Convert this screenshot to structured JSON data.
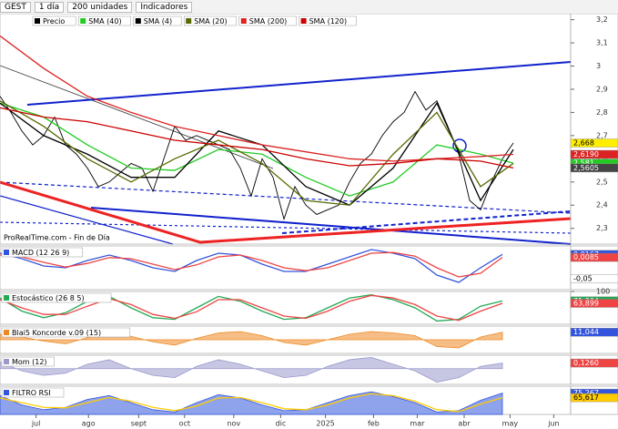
{
  "toolbar": {
    "symbol": "GEST",
    "period": "1 día",
    "units": "200 unidades",
    "indicators": "Indicadores"
  },
  "watermark": "ProRealTime.com - Fin de Día",
  "x_axis": {
    "xlim": [
      0,
      52.25
    ],
    "xticks": [
      {
        "value": 3.3,
        "label": "jul"
      },
      {
        "value": 8.1,
        "label": "ago"
      },
      {
        "value": 12.7,
        "label": "sept"
      },
      {
        "value": 16.9,
        "label": "oct"
      },
      {
        "value": 21.4,
        "label": "nov"
      },
      {
        "value": 25.7,
        "label": "dic"
      },
      {
        "value": 29.8,
        "label": "2025"
      },
      {
        "value": 34.2,
        "label": "feb"
      },
      {
        "value": 38.2,
        "label": "mar"
      },
      {
        "value": 42.5,
        "label": "abr"
      },
      {
        "value": 46.7,
        "label": "may"
      },
      {
        "value": 50.7,
        "label": "jun"
      }
    ]
  },
  "chart_data": [
    {
      "type": "line",
      "ylim": [
        2.232,
        3.226
      ],
      "yticks": [
        {
          "value": 2.3,
          "label": "2,3"
        },
        {
          "value": 2.4,
          "label": "2,4"
        },
        {
          "value": 2.5,
          "label": "2,5"
        },
        {
          "value": 2.6,
          "label": "2,6"
        },
        {
          "value": 2.7,
          "label": "2,7"
        },
        {
          "value": 2.8,
          "label": "2,8"
        },
        {
          "value": 2.9,
          "label": "2,9"
        },
        {
          "value": 3.0,
          "label": "3"
        },
        {
          "value": 3.1,
          "label": "3,1"
        },
        {
          "value": 3.2,
          "label": "3,2"
        }
      ],
      "series": [
        {
          "name": "Precio",
          "color": "#000000",
          "x": [
            0,
            1,
            2,
            3,
            4,
            5,
            6,
            7,
            8,
            9,
            10,
            11,
            12,
            13,
            14,
            15,
            16,
            17,
            18,
            19,
            20,
            21,
            22,
            23,
            24,
            25,
            26,
            27,
            28,
            29,
            30,
            31,
            32,
            33,
            34,
            35,
            36,
            37,
            38,
            39,
            40,
            41,
            42,
            43,
            44,
            45,
            46,
            47
          ],
          "values": [
            2.87,
            2.8,
            2.72,
            2.66,
            2.7,
            2.78,
            2.66,
            2.62,
            2.56,
            2.48,
            2.5,
            2.54,
            2.58,
            2.56,
            2.46,
            2.6,
            2.74,
            2.68,
            2.7,
            2.68,
            2.66,
            2.64,
            2.56,
            2.44,
            2.6,
            2.52,
            2.34,
            2.48,
            2.4,
            2.36,
            2.38,
            2.4,
            2.5,
            2.58,
            2.62,
            2.7,
            2.76,
            2.8,
            2.89,
            2.81,
            2.85,
            2.74,
            2.62,
            2.42,
            2.38,
            2.5,
            2.6,
            2.668
          ]
        },
        {
          "name": "SMA (40)",
          "color": "#22cc22",
          "x": [
            0,
            4,
            8,
            12,
            16,
            20,
            24,
            28,
            32,
            36,
            40,
            44,
            47
          ],
          "values": [
            2.84,
            2.78,
            2.66,
            2.56,
            2.55,
            2.64,
            2.62,
            2.52,
            2.44,
            2.5,
            2.66,
            2.62,
            2.581
          ]
        },
        {
          "name": "SMA (4)",
          "color": "#000000",
          "x": [
            0,
            4,
            8,
            12,
            16,
            20,
            24,
            28,
            32,
            36,
            40,
            44,
            47
          ],
          "values": [
            2.84,
            2.7,
            2.62,
            2.52,
            2.52,
            2.72,
            2.66,
            2.48,
            2.4,
            2.56,
            2.84,
            2.42,
            2.64
          ]
        },
        {
          "name": "SMA (20)",
          "color": "#556b00",
          "x": [
            0,
            4,
            8,
            12,
            16,
            20,
            24,
            28,
            32,
            36,
            40,
            44,
            47
          ],
          "values": [
            2.85,
            2.74,
            2.6,
            2.5,
            2.6,
            2.68,
            2.58,
            2.42,
            2.4,
            2.62,
            2.8,
            2.48,
            2.58
          ]
        },
        {
          "name": "SMA (200)",
          "color": "#dd2222",
          "x": [
            0,
            4,
            8,
            12,
            16,
            20,
            24,
            28,
            32,
            36,
            40,
            44,
            47
          ],
          "values": [
            3.13,
            2.99,
            2.87,
            2.8,
            2.74,
            2.7,
            2.66,
            2.63,
            2.6,
            2.59,
            2.6,
            2.61,
            2.619
          ]
        },
        {
          "name": "SMA (120)",
          "color": "#cc0000",
          "x": [
            0,
            4,
            8,
            12,
            16,
            20,
            24,
            28,
            32,
            36,
            40,
            44,
            47
          ],
          "values": [
            2.82,
            2.78,
            2.76,
            2.72,
            2.68,
            2.66,
            2.64,
            2.6,
            2.57,
            2.58,
            2.6,
            2.59,
            2.5605
          ]
        }
      ],
      "markers": [
        {
          "value": 2.668,
          "label": "2,668",
          "color": "#ffee00"
        },
        {
          "value": 2.619,
          "label": "2,6190",
          "color": "#dd2222"
        },
        {
          "value": 2.581,
          "label": "2,581",
          "color": "#22cc22"
        },
        {
          "value": 2.5605,
          "label": "2,5605",
          "color": "#444444"
        }
      ]
    },
    {
      "type": "line",
      "title": "MACD (12 26 9)",
      "ylim": [
        -0.08,
        0.04
      ],
      "series": [
        {
          "color": "#3355dd",
          "x": [
            0,
            2,
            4,
            6,
            8,
            10,
            12,
            14,
            16,
            18,
            20,
            22,
            24,
            26,
            28,
            30,
            32,
            34,
            36,
            38,
            40,
            42,
            44,
            46
          ],
          "values": [
            0.02,
            0.005,
            -0.015,
            -0.02,
            0.0,
            0.015,
            0.0,
            -0.02,
            -0.03,
            0.0,
            0.02,
            0.015,
            -0.01,
            -0.03,
            -0.03,
            -0.01,
            0.01,
            0.03,
            0.02,
            0.005,
            -0.04,
            -0.06,
            -0.02,
            0.0167
          ]
        },
        {
          "color": "#ee4444",
          "x": [
            0,
            2,
            4,
            6,
            8,
            10,
            12,
            14,
            16,
            18,
            20,
            22,
            24,
            26,
            28,
            30,
            32,
            34,
            36,
            38,
            40,
            42,
            44,
            46
          ],
          "values": [
            0.015,
            0.01,
            -0.005,
            -0.018,
            -0.008,
            0.008,
            0.005,
            -0.01,
            -0.025,
            -0.012,
            0.01,
            0.015,
            0.0,
            -0.02,
            -0.028,
            -0.02,
            0.0,
            0.02,
            0.022,
            0.012,
            -0.02,
            -0.045,
            -0.035,
            0.0085
          ]
        }
      ],
      "markers": [
        {
          "value": 0.0167,
          "label": "0,0167",
          "color": "#3355dd"
        },
        {
          "value": 0.0085,
          "label": "0,0085",
          "color": "#ee4444"
        },
        {
          "value": -0.05,
          "label": "-0,05",
          "color": "#ffffff"
        }
      ]
    },
    {
      "type": "line",
      "title": "Estocástico (26 8 5)",
      "ylim": [
        0,
        100
      ],
      "yticks": [
        100
      ],
      "series": [
        {
          "color": "#22aa55",
          "x": [
            0,
            2,
            4,
            6,
            8,
            10,
            12,
            14,
            16,
            18,
            20,
            22,
            24,
            26,
            28,
            30,
            32,
            34,
            36,
            38,
            40,
            42,
            44,
            46
          ],
          "values": [
            80,
            40,
            20,
            35,
            70,
            85,
            50,
            20,
            15,
            50,
            85,
            70,
            40,
            15,
            20,
            50,
            80,
            90,
            75,
            50,
            10,
            15,
            55,
            71.304
          ]
        },
        {
          "color": "#ee4444",
          "x": [
            0,
            2,
            4,
            6,
            8,
            10,
            12,
            14,
            16,
            18,
            20,
            22,
            24,
            26,
            28,
            30,
            32,
            34,
            36,
            38,
            40,
            42,
            44,
            46
          ],
          "values": [
            75,
            50,
            30,
            30,
            55,
            78,
            60,
            30,
            18,
            38,
            75,
            75,
            50,
            25,
            18,
            40,
            70,
            88,
            80,
            60,
            25,
            12,
            40,
            63.899
          ]
        }
      ],
      "markers": [
        {
          "value": 71.304,
          "label": "71,304",
          "color": "#22aa55"
        },
        {
          "value": 63.899,
          "label": "63,899",
          "color": "#ee4444"
        }
      ]
    },
    {
      "type": "line",
      "title": "Blai5 Koncorde v.09 (15)",
      "ylim": [
        -20,
        20
      ],
      "series": [
        {
          "color": "#ee8822",
          "style": "area",
          "x": [
            0,
            2,
            4,
            6,
            8,
            10,
            12,
            14,
            16,
            18,
            20,
            22,
            24,
            26,
            28,
            30,
            32,
            34,
            36,
            38,
            40,
            42,
            44,
            46
          ],
          "values": [
            8,
            4,
            -2,
            -6,
            3,
            9,
            5,
            -3,
            -8,
            2,
            10,
            12,
            6,
            -4,
            -8,
            0,
            8,
            12,
            10,
            6,
            -10,
            -12,
            4,
            11.044
          ]
        }
      ],
      "markers": [
        {
          "value": 11.044,
          "label": "11,044",
          "color": "#3355dd"
        }
      ]
    },
    {
      "type": "line",
      "title": "Mom (12)",
      "ylim": [
        -0.35,
        0.3
      ],
      "series": [
        {
          "color": "#9999cc",
          "style": "area",
          "x": [
            0,
            2,
            4,
            6,
            8,
            10,
            12,
            14,
            16,
            18,
            20,
            22,
            24,
            26,
            28,
            30,
            32,
            34,
            36,
            38,
            40,
            42,
            44,
            46
          ],
          "values": [
            0.15,
            -0.05,
            -0.15,
            -0.1,
            0.1,
            0.2,
            0.0,
            -0.15,
            -0.2,
            0.05,
            0.2,
            0.1,
            -0.05,
            -0.2,
            -0.15,
            0.05,
            0.2,
            0.25,
            0.1,
            -0.05,
            -0.3,
            -0.2,
            0.05,
            0.126
          ]
        }
      ],
      "markers": [
        {
          "value": 0.126,
          "label": "0,1260",
          "color": "#ee4444"
        }
      ]
    },
    {
      "type": "line",
      "title": "FILTRO RSI",
      "ylim": [
        30,
        90
      ],
      "series": [
        {
          "color": "#3355dd",
          "style": "area",
          "x": [
            0,
            2,
            4,
            6,
            8,
            10,
            12,
            14,
            16,
            18,
            20,
            22,
            24,
            26,
            28,
            30,
            32,
            34,
            36,
            38,
            40,
            42,
            44,
            46
          ],
          "values": [
            70,
            50,
            40,
            45,
            62,
            70,
            55,
            40,
            35,
            55,
            72,
            65,
            50,
            38,
            40,
            55,
            70,
            78,
            68,
            55,
            35,
            38,
            60,
            75.267
          ]
        },
        {
          "color": "#ffcc00",
          "x": [
            0,
            2,
            4,
            6,
            8,
            10,
            12,
            14,
            16,
            18,
            20,
            22,
            24,
            26,
            28,
            30,
            32,
            34,
            36,
            38,
            40,
            42,
            44,
            46
          ],
          "values": [
            65,
            55,
            45,
            44,
            55,
            66,
            58,
            45,
            38,
            48,
            65,
            66,
            55,
            42,
            40,
            50,
            65,
            74,
            70,
            58,
            40,
            36,
            52,
            65.617
          ]
        }
      ],
      "markers": [
        {
          "value": 75.267,
          "label": "75,267",
          "color": "#3355dd"
        },
        {
          "value": 65.617,
          "label": "65,617",
          "color": "#ffcc00"
        }
      ]
    }
  ]
}
